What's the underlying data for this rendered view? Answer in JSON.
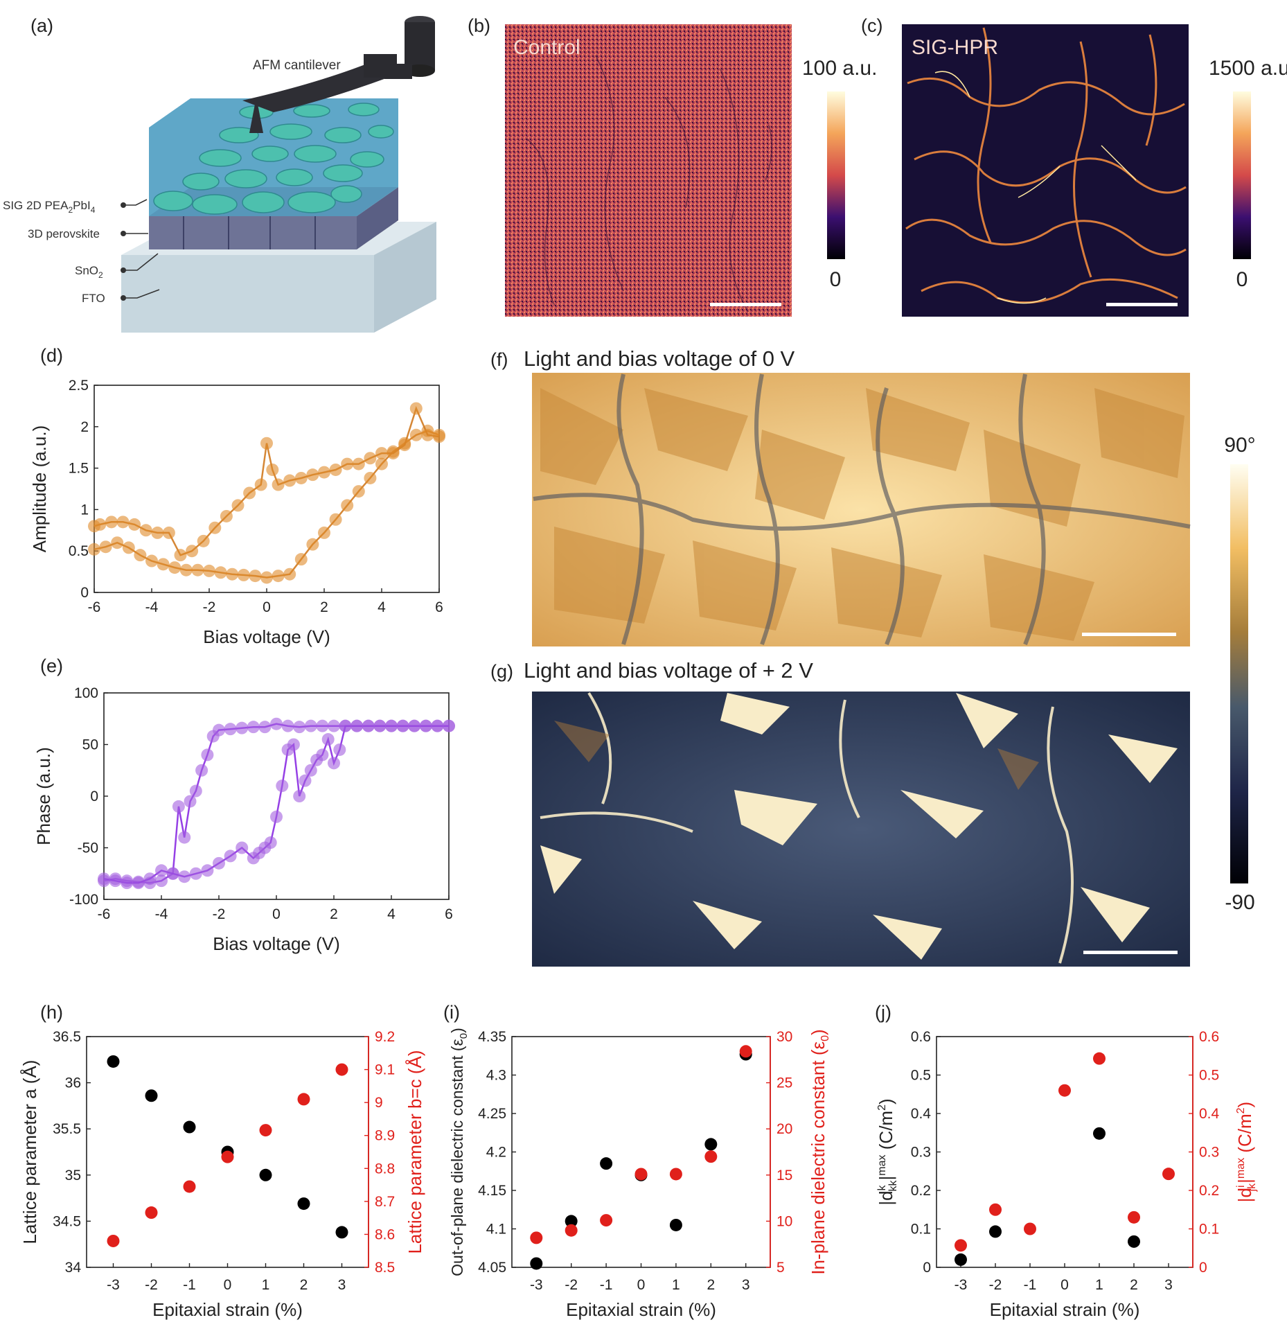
{
  "panels": {
    "a": {
      "letter": "(a)",
      "labels": {
        "cantilever": "AFM cantilever",
        "sig_prefix": "SIG 2D PEA",
        "sig_sub1": "2",
        "sig_mid": "PbI",
        "sig_sub2": "4",
        "perovskite": "3D perovskite",
        "sno_main": "SnO",
        "sno_sub": "2",
        "fto": "FTO"
      }
    },
    "b": {
      "letter": "(b)",
      "label": "Control",
      "cbar_max": "100 a.u.",
      "cbar_min": "0"
    },
    "c": {
      "letter": "(c)",
      "label": "SIG-HPR",
      "cbar_max": "1500 a.u.",
      "cbar_min": "0"
    },
    "f": {
      "letter": "(f)",
      "title": "Light and bias voltage of 0 V"
    },
    "g": {
      "letter": "(g)",
      "title": "Light and bias voltage of + 2 V"
    },
    "fg_colorbar": {
      "max": "90°",
      "min": "-90"
    },
    "d": {
      "letter": "(d)"
    },
    "e": {
      "letter": "(e)"
    },
    "h": {
      "letter": "(h)"
    },
    "i": {
      "letter": "(i)"
    },
    "j": {
      "letter": "(j)"
    }
  },
  "colors": {
    "amplitude": "#e08a2a",
    "phase": "#a35fe0",
    "phase_line": "#8a2be2",
    "black_series": "#000000",
    "red_series": "#e0201b",
    "control_map": "#b84a57",
    "hpr_bg": "#170f35"
  },
  "chart_data": [
    {
      "id": "d",
      "type": "line",
      "xlabel": "Bias voltage (V)",
      "ylabel": "Amplitude (a.u.)",
      "xlim": [
        -6,
        6
      ],
      "ylim": [
        0,
        2.5
      ],
      "xticks": [
        "-6",
        "-4",
        "-2",
        "0",
        "2",
        "4",
        "6"
      ],
      "yticks": [
        "0",
        "0.5",
        "1",
        "1.5",
        "2",
        "2.5"
      ],
      "series": [
        {
          "values": [
            [
              -6,
              0.52
            ],
            [
              -5.6,
              0.55
            ],
            [
              -5.2,
              0.6
            ],
            [
              -4.8,
              0.54
            ],
            [
              -4.4,
              0.45
            ],
            [
              -4,
              0.38
            ],
            [
              -3.6,
              0.34
            ],
            [
              -3.2,
              0.3
            ],
            [
              -2.8,
              0.27
            ],
            [
              -2.4,
              0.27
            ],
            [
              -2,
              0.26
            ],
            [
              -1.6,
              0.24
            ],
            [
              -1.2,
              0.22
            ],
            [
              -0.8,
              0.21
            ],
            [
              -0.4,
              0.2
            ],
            [
              0,
              0.18
            ],
            [
              0.4,
              0.2
            ],
            [
              0.8,
              0.22
            ],
            [
              1.2,
              0.4
            ],
            [
              1.6,
              0.58
            ],
            [
              2,
              0.72
            ],
            [
              2.4,
              0.88
            ],
            [
              2.8,
              1.05
            ],
            [
              3.2,
              1.22
            ],
            [
              3.6,
              1.38
            ],
            [
              4,
              1.55
            ],
            [
              4.4,
              1.7
            ],
            [
              4.8,
              1.8
            ],
            [
              5.2,
              1.9
            ],
            [
              5.6,
              1.95
            ],
            [
              6,
              1.9
            ]
          ]
        },
        {
          "values": [
            [
              6,
              1.88
            ],
            [
              5.6,
              1.9
            ],
            [
              5.2,
              2.22
            ],
            [
              4.8,
              1.78
            ],
            [
              4.4,
              1.68
            ],
            [
              4,
              1.68
            ],
            [
              3.6,
              1.62
            ],
            [
              3.2,
              1.55
            ],
            [
              2.8,
              1.55
            ],
            [
              2.4,
              1.48
            ],
            [
              2,
              1.45
            ],
            [
              1.6,
              1.42
            ],
            [
              1.2,
              1.38
            ],
            [
              0.8,
              1.35
            ],
            [
              0.4,
              1.3
            ],
            [
              0.2,
              1.48
            ],
            [
              0,
              1.8
            ],
            [
              -0.2,
              1.3
            ],
            [
              -0.6,
              1.2
            ],
            [
              -1,
              1.05
            ],
            [
              -1.4,
              0.92
            ],
            [
              -1.8,
              0.78
            ],
            [
              -2.2,
              0.62
            ],
            [
              -2.6,
              0.5
            ],
            [
              -3,
              0.45
            ],
            [
              -3.4,
              0.72
            ],
            [
              -3.8,
              0.72
            ],
            [
              -4.2,
              0.75
            ],
            [
              -4.6,
              0.82
            ],
            [
              -5,
              0.85
            ],
            [
              -5.4,
              0.85
            ],
            [
              -5.8,
              0.82
            ],
            [
              -6,
              0.8
            ]
          ]
        }
      ]
    },
    {
      "id": "e",
      "type": "line",
      "xlabel": "Bias voltage (V)",
      "ylabel": "Phase (a.u.)",
      "xlim": [
        -6,
        6
      ],
      "ylim": [
        -100,
        100
      ],
      "xticks": [
        "-6",
        "-4",
        "-2",
        "0",
        "2",
        "4",
        "6"
      ],
      "yticks": [
        "-100",
        "-50",
        "0",
        "50",
        "100"
      ],
      "series": [
        {
          "values": [
            [
              -6,
              -82
            ],
            [
              -5.6,
              -80
            ],
            [
              -5.2,
              -82
            ],
            [
              -4.8,
              -83
            ],
            [
              -4.4,
              -84
            ],
            [
              -4,
              -82
            ],
            [
              -3.6,
              -75
            ],
            [
              -3.4,
              -10
            ],
            [
              -3.2,
              -40
            ],
            [
              -3,
              -5
            ],
            [
              -2.8,
              5
            ],
            [
              -2.6,
              25
            ],
            [
              -2.4,
              40
            ],
            [
              -2.2,
              58
            ],
            [
              -2,
              64
            ],
            [
              -1.6,
              65
            ],
            [
              -1.2,
              66
            ],
            [
              -0.8,
              67
            ],
            [
              -0.4,
              67
            ],
            [
              0,
              70
            ],
            [
              0.4,
              68
            ],
            [
              0.8,
              67
            ],
            [
              1.2,
              68
            ],
            [
              1.6,
              68
            ],
            [
              2,
              68
            ],
            [
              2.4,
              68
            ],
            [
              2.8,
              68
            ],
            [
              3.2,
              68
            ],
            [
              3.6,
              68
            ],
            [
              4,
              68
            ],
            [
              4.4,
              68
            ],
            [
              4.8,
              68
            ],
            [
              5.2,
              68
            ],
            [
              5.6,
              68
            ],
            [
              6,
              68
            ]
          ]
        },
        {
          "values": [
            [
              6,
              68
            ],
            [
              5.6,
              68
            ],
            [
              5.2,
              68
            ],
            [
              4.8,
              68
            ],
            [
              4.4,
              68
            ],
            [
              4,
              68
            ],
            [
              3.6,
              68
            ],
            [
              3.2,
              68
            ],
            [
              2.8,
              68
            ],
            [
              2.4,
              68
            ],
            [
              2.2,
              45
            ],
            [
              2,
              32
            ],
            [
              1.8,
              55
            ],
            [
              1.6,
              40
            ],
            [
              1.4,
              35
            ],
            [
              1.2,
              25
            ],
            [
              1,
              15
            ],
            [
              0.8,
              0
            ],
            [
              0.6,
              50
            ],
            [
              0.4,
              45
            ],
            [
              0.2,
              10
            ],
            [
              0,
              -20
            ],
            [
              -0.2,
              -45
            ],
            [
              -0.4,
              -50
            ],
            [
              -0.6,
              -55
            ],
            [
              -0.8,
              -60
            ],
            [
              -1.2,
              -50
            ],
            [
              -1.6,
              -58
            ],
            [
              -2,
              -65
            ],
            [
              -2.4,
              -72
            ],
            [
              -2.8,
              -75
            ],
            [
              -3.2,
              -78
            ],
            [
              -3.6,
              -75
            ],
            [
              -4,
              -72
            ],
            [
              -4.4,
              -80
            ],
            [
              -4.8,
              -84
            ],
            [
              -5.2,
              -84
            ],
            [
              -5.6,
              -82
            ],
            [
              -6,
              -80
            ]
          ]
        }
      ]
    },
    {
      "id": "h",
      "type": "scatter",
      "xlabel": "Epitaxial strain (%)",
      "ylabel": "Lattice parameter a (Å)",
      "y2label": "Lattice parameter b=c (Å)",
      "xlim": [
        -3.7,
        3.7
      ],
      "ylim": [
        34,
        36.5
      ],
      "y2lim": [
        8.5,
        9.2
      ],
      "categories": [
        "-3",
        "-2",
        "-1",
        "0",
        "1",
        "2",
        "3"
      ],
      "yticks": [
        "34",
        "34.5",
        "35",
        "35.5",
        "36",
        "36.5"
      ],
      "y2ticks": [
        "8.5",
        "8.6",
        "8.7",
        "8.8",
        "8.9",
        "9",
        "9.1",
        "9.2"
      ],
      "series": [
        {
          "axis": "left",
          "values": [
            36.23,
            35.86,
            35.52,
            35.25,
            35.0,
            34.69,
            34.38
          ]
        },
        {
          "axis": "right",
          "values": [
            8.58,
            8.666,
            8.745,
            8.835,
            8.916,
            9.01,
            9.1
          ]
        }
      ]
    },
    {
      "id": "i",
      "type": "scatter",
      "xlabel": "Epitaxial strain (%)",
      "ylabel": "Out-of-plane dielectric constant (ε",
      "ylabel_sub": "0",
      "ylabel_end": ")",
      "y2label": "In-plane dielectric constant (ε",
      "y2label_sub": "0",
      "y2label_end": ")",
      "xlim": [
        -3.7,
        3.7
      ],
      "ylim": [
        4.05,
        4.35
      ],
      "y2lim": [
        5,
        30
      ],
      "categories": [
        "-3",
        "-2",
        "-1",
        "0",
        "1",
        "2",
        "3"
      ],
      "yticks": [
        "4.05",
        "4.1",
        "4.15",
        "4.2",
        "4.25",
        "4.3",
        "4.35"
      ],
      "y2ticks": [
        "5",
        "10",
        "15",
        "20",
        "25",
        "30"
      ],
      "series": [
        {
          "axis": "left",
          "values": [
            4.055,
            4.11,
            4.185,
            4.17,
            4.105,
            4.21,
            4.327
          ]
        },
        {
          "axis": "right",
          "values": [
            8.2,
            9.0,
            10.1,
            15.1,
            15.1,
            17.0,
            28.4
          ]
        }
      ]
    },
    {
      "id": "j",
      "type": "scatter",
      "xlabel": "Epitaxial strain (%)",
      "ylabel": "|d",
      "ylabel_sup": "k",
      "ylabel_sub": "kk",
      "ylabel_end": "|",
      "ylabel_sup2": "max",
      "ylabel_unit": " (C/m",
      "ylabel_unit_sup": "2",
      "ylabel_close": ")",
      "y2label": "|d",
      "y2label_sup": "i",
      "y2label_sub": "jk",
      "y2label_end": "|",
      "y2label_sup2": "max",
      "y2label_unit": " (C/m",
      "y2label_unit_sup": "2",
      "y2label_close": ")",
      "xlim": [
        -3.7,
        3.7
      ],
      "ylim": [
        0,
        0.6
      ],
      "y2lim": [
        0,
        0.6
      ],
      "categories": [
        "-3",
        "-2",
        "-1",
        "0",
        "1",
        "2",
        "3"
      ],
      "yticks": [
        "0",
        "0.1",
        "0.2",
        "0.3",
        "0.4",
        "0.5",
        "0.6"
      ],
      "y2ticks": [
        "0",
        "0.1",
        "0.2",
        "0.3",
        "0.4",
        "0.5",
        "0.6"
      ],
      "series": [
        {
          "axis": "left",
          "values": [
            0.02,
            0.093,
            null,
            null,
            0.348,
            0.067,
            null
          ]
        },
        {
          "axis": "right",
          "values": [
            0.057,
            0.15,
            0.1,
            0.46,
            0.543,
            0.13,
            0.243
          ]
        }
      ]
    }
  ]
}
